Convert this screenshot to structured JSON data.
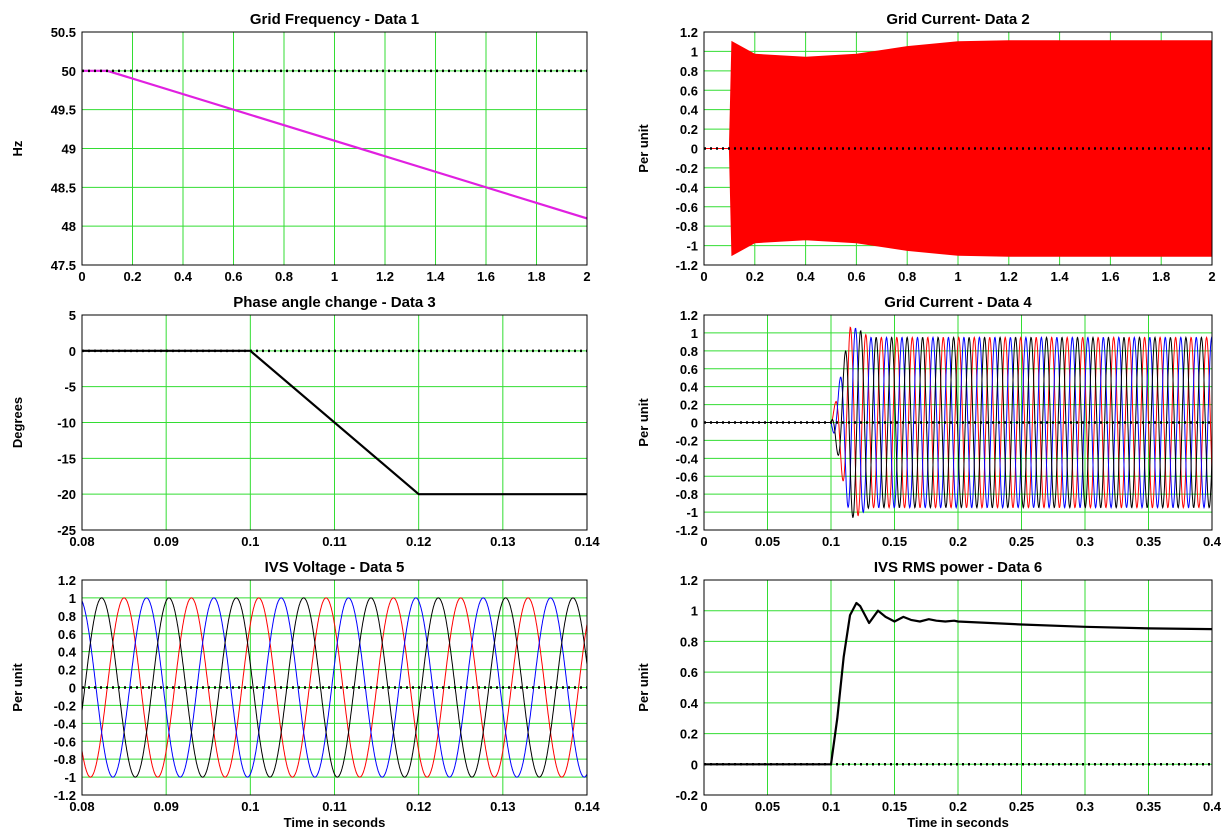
{
  "chart_data": [
    {
      "type": "line",
      "title": "Grid Frequency - Data 1",
      "xlabel": "",
      "ylabel": "Hz",
      "xlim": [
        0,
        2
      ],
      "ylim": [
        47.5,
        50.5
      ],
      "xticks": [
        "0",
        "0.2",
        "0.4",
        "0.6",
        "0.8",
        "1",
        "1.2",
        "1.4",
        "1.6",
        "1.8",
        "2"
      ],
      "yticks": [
        "47.5",
        "48",
        "48.5",
        "49",
        "49.5",
        "50",
        "50.5"
      ],
      "reference_line": 50,
      "grid": true,
      "series": [
        {
          "color": "#e020e0",
          "x": [
            0,
            0.1,
            2
          ],
          "y": [
            50,
            50,
            48.1
          ]
        }
      ]
    },
    {
      "type": "line",
      "title": "Grid Current- Data 2",
      "xlabel": "",
      "ylabel": "Per unit",
      "xlim": [
        0,
        2
      ],
      "ylim": [
        -1.2,
        1.2
      ],
      "xticks": [
        "0",
        "0.2",
        "0.4",
        "0.6",
        "0.8",
        "1",
        "1.2",
        "1.4",
        "1.6",
        "1.8",
        "2"
      ],
      "yticks": [
        "-1.2",
        "-1",
        "-0.8",
        "-0.6",
        "-0.4",
        "-0.2",
        "0",
        "0.2",
        "0.4",
        "0.6",
        "0.8",
        "1",
        "1.2"
      ],
      "reference_line": 0,
      "grid": true,
      "envelope": {
        "color": "#ff0000",
        "x": [
          0,
          0.1,
          0.11,
          0.2,
          0.4,
          0.6,
          0.8,
          1.0,
          1.2,
          2.0
        ],
        "upper": [
          0,
          0,
          1.1,
          0.97,
          0.94,
          0.97,
          1.05,
          1.1,
          1.11,
          1.11
        ]
      }
    },
    {
      "type": "line",
      "title": "Phase angle change - Data 3",
      "xlabel": "",
      "ylabel": "Degrees",
      "xlim": [
        0.08,
        0.14
      ],
      "ylim": [
        -25,
        5
      ],
      "xticks": [
        "0.08",
        "0.09",
        "0.1",
        "0.11",
        "0.12",
        "0.13",
        "0.14"
      ],
      "yticks": [
        "-25",
        "-20",
        "-15",
        "-10",
        "-5",
        "0",
        "5"
      ],
      "reference_line": 0,
      "grid": true,
      "series": [
        {
          "color": "#000000",
          "x": [
            0.08,
            0.1,
            0.12,
            0.14
          ],
          "y": [
            0,
            0,
            -20,
            -20
          ]
        }
      ]
    },
    {
      "type": "line",
      "title": "Grid Current - Data 4",
      "xlabel": "",
      "ylabel": "Per unit",
      "xlim": [
        0,
        0.4
      ],
      "ylim": [
        -1.2,
        1.2
      ],
      "xticks": [
        "0",
        "0.05",
        "0.1",
        "0.15",
        "0.2",
        "0.25",
        "0.3",
        "0.35",
        "0.4"
      ],
      "yticks": [
        "-1.2",
        "-1",
        "-0.8",
        "-0.6",
        "-0.4",
        "-0.2",
        "0",
        "0.2",
        "0.4",
        "0.6",
        "0.8",
        "1",
        "1.2"
      ],
      "reference_line": 0,
      "grid": true,
      "three_phase": {
        "colors": [
          "#ff0000",
          "#0000ff",
          "#000000"
        ],
        "frequency_hz": 82,
        "start_time": 0.1,
        "amplitude": 0.95
      }
    },
    {
      "type": "line",
      "title": "IVS Voltage - Data 5",
      "xlabel": "Time in seconds",
      "ylabel": "Per unit",
      "xlim": [
        0.08,
        0.14
      ],
      "ylim": [
        -1.2,
        1.2
      ],
      "xticks": [
        "0.08",
        "0.09",
        "0.1",
        "0.11",
        "0.12",
        "0.13",
        "0.14"
      ],
      "yticks": [
        "-1.2",
        "-1",
        "-0.8",
        "-0.6",
        "-0.4",
        "-0.2",
        "0",
        "0.2",
        "0.4",
        "0.6",
        "0.8",
        "1",
        "1.2"
      ],
      "reference_line": 0,
      "grid": true,
      "three_phase": {
        "colors": [
          "#ff0000",
          "#0000ff",
          "#000000"
        ],
        "frequency_hz": 125,
        "amplitude": 1,
        "peak_red": 0.085
      }
    },
    {
      "type": "line",
      "title": "IVS RMS power - Data 6",
      "xlabel": "Time in seconds",
      "ylabel": "Per unit",
      "xlim": [
        0,
        0.4
      ],
      "ylim": [
        -0.2,
        1.2
      ],
      "xticks": [
        "0",
        "0.05",
        "0.1",
        "0.15",
        "0.2",
        "0.25",
        "0.3",
        "0.35",
        "0.4"
      ],
      "yticks": [
        "-0.2",
        "0",
        "0.2",
        "0.4",
        "0.6",
        "0.8",
        "1",
        "1.2"
      ],
      "reference_line": 0,
      "grid": true,
      "series": [
        {
          "color": "#000000",
          "x": [
            0,
            0.1,
            0.105,
            0.11,
            0.115,
            0.12,
            0.123,
            0.13,
            0.137,
            0.143,
            0.15,
            0.157,
            0.163,
            0.17,
            0.177,
            0.183,
            0.19,
            0.197,
            0.2,
            0.25,
            0.3,
            0.35,
            0.4
          ],
          "y": [
            0,
            0,
            0.3,
            0.7,
            0.97,
            1.05,
            1.03,
            0.92,
            1.0,
            0.96,
            0.93,
            0.96,
            0.94,
            0.93,
            0.945,
            0.935,
            0.93,
            0.935,
            0.93,
            0.91,
            0.895,
            0.885,
            0.88
          ]
        }
      ]
    }
  ]
}
